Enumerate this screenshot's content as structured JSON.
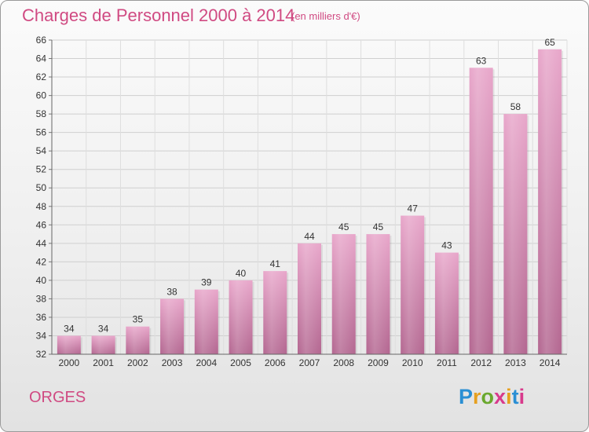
{
  "title": "Charges de Personnel 2000 à 2014",
  "subtitle": "(en milliers d'€)",
  "town": "ORGES",
  "logo": {
    "letters": [
      "P",
      "r",
      "o",
      "x",
      "i",
      "t",
      "i"
    ],
    "colors": [
      "#2a8fd4",
      "#e6a020",
      "#6aa82e",
      "#d83a8c",
      "#e6a020",
      "#2a8fd4",
      "#d83a8c"
    ]
  },
  "colors": {
    "accent": "#d04a82",
    "bar": "#c86c9e"
  },
  "chart_data": {
    "type": "bar",
    "title": "Charges de Personnel 2000 à 2014",
    "subtitle": "(en milliers d'€)",
    "xlabel": "",
    "ylabel": "",
    "categories": [
      "2000",
      "2001",
      "2002",
      "2003",
      "2004",
      "2005",
      "2006",
      "2007",
      "2008",
      "2009",
      "2010",
      "2011",
      "2012",
      "2013",
      "2014"
    ],
    "values": [
      34,
      34,
      35,
      38,
      39,
      40,
      41,
      44,
      45,
      45,
      47,
      43,
      63,
      58,
      65
    ],
    "ylim": [
      32,
      66
    ],
    "yticks": [
      32,
      34,
      36,
      38,
      40,
      42,
      44,
      46,
      48,
      50,
      52,
      54,
      56,
      58,
      60,
      62,
      64,
      66
    ],
    "grid": true,
    "legend": "none"
  }
}
